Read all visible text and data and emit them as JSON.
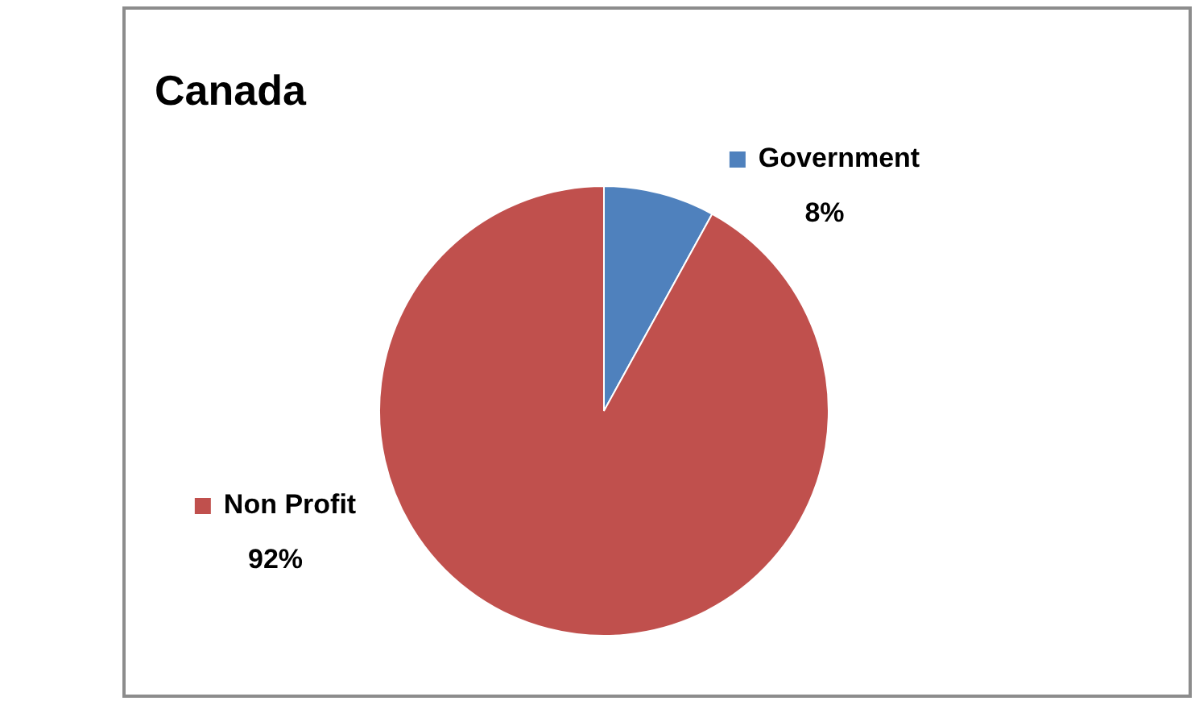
{
  "chart_data": {
    "type": "pie",
    "title": "Canada",
    "categories": [
      "Government",
      "Non Profit"
    ],
    "values": [
      8,
      92
    ],
    "colors": [
      "#4f81bd",
      "#c0504d"
    ],
    "value_labels": [
      "8%",
      "92%"
    ],
    "legend": "top left"
  }
}
